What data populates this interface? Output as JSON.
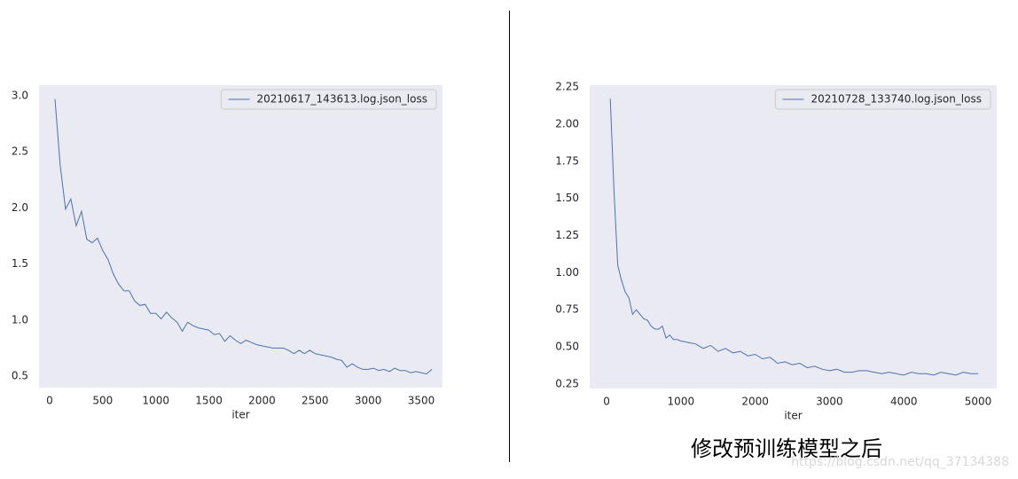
{
  "chart_data": [
    {
      "type": "line",
      "xlabel": "iter",
      "xlim": [
        -100,
        3700
      ],
      "ylim": [
        0.397,
        3.095
      ],
      "xticks": [
        0,
        500,
        1000,
        1500,
        2000,
        2500,
        3000,
        3500
      ],
      "yticks": [
        0.5,
        {
          "value": 1.0,
          "label": "1.0"
        },
        1.5,
        {
          "value": 2.0,
          "label": "2.0"
        },
        2.5,
        {
          "value": 3.0,
          "label": "3.0"
        }
      ],
      "grid": false,
      "legend": "upper right",
      "background": "#eaeaf2",
      "x": [
        50,
        100,
        150,
        200,
        250,
        300,
        350,
        400,
        450,
        500,
        550,
        600,
        650,
        700,
        750,
        800,
        850,
        900,
        950,
        1000,
        1050,
        1100,
        1150,
        1200,
        1250,
        1300,
        1350,
        1400,
        1450,
        1500,
        1550,
        1600,
        1650,
        1700,
        1750,
        1800,
        1850,
        1900,
        1950,
        2000,
        2050,
        2100,
        2150,
        2200,
        2250,
        2300,
        2350,
        2400,
        2450,
        2500,
        2550,
        2600,
        2650,
        2700,
        2750,
        2800,
        2850,
        2900,
        2950,
        3000,
        3050,
        3100,
        3150,
        3200,
        3250,
        3300,
        3350,
        3400,
        3450,
        3500,
        3550,
        3600
      ],
      "series": [
        {
          "name": "20210617_143613.log.json_loss",
          "color": "#4c72b0",
          "values": [
            2.97,
            2.38,
            1.99,
            2.08,
            1.84,
            1.97,
            1.72,
            1.69,
            1.73,
            1.62,
            1.54,
            1.41,
            1.32,
            1.26,
            1.26,
            1.17,
            1.13,
            1.14,
            1.06,
            1.06,
            1.01,
            1.07,
            1.02,
            0.98,
            0.9,
            0.98,
            0.95,
            0.93,
            0.92,
            0.91,
            0.87,
            0.88,
            0.81,
            0.86,
            0.82,
            0.79,
            0.82,
            0.8,
            0.78,
            0.77,
            0.76,
            0.75,
            0.75,
            0.75,
            0.73,
            0.7,
            0.73,
            0.7,
            0.73,
            0.7,
            0.69,
            0.68,
            0.67,
            0.65,
            0.64,
            0.58,
            0.61,
            0.58,
            0.56,
            0.56,
            0.57,
            0.55,
            0.56,
            0.54,
            0.57,
            0.55,
            0.55,
            0.53,
            0.54,
            0.53,
            0.52,
            0.56
          ]
        }
      ]
    },
    {
      "type": "line",
      "xlabel": "iter",
      "xlim": [
        -227,
        5250
      ],
      "ylim": [
        0.22,
        2.262
      ],
      "xticks": [
        0,
        1000,
        2000,
        3000,
        4000,
        5000
      ],
      "yticks": [
        {
          "value": 0.25,
          "label": "0.25"
        },
        {
          "value": 0.5,
          "label": "0.50"
        },
        0.75,
        {
          "value": 1.0,
          "label": "1.00"
        },
        1.25,
        {
          "value": 1.5,
          "label": "1.50"
        },
        1.75,
        {
          "value": 2.0,
          "label": "2.00"
        },
        2.25
      ],
      "grid": false,
      "legend": "upper right",
      "background": "#eaeaf2",
      "x": [
        50,
        100,
        150,
        200,
        250,
        300,
        350,
        400,
        450,
        500,
        550,
        600,
        650,
        700,
        750,
        800,
        850,
        900,
        950,
        1000,
        1100,
        1200,
        1300,
        1400,
        1500,
        1600,
        1700,
        1800,
        1900,
        2000,
        2100,
        2200,
        2300,
        2400,
        2500,
        2600,
        2700,
        2800,
        2900,
        3000,
        3100,
        3200,
        3300,
        3400,
        3500,
        3600,
        3700,
        3800,
        3900,
        4000,
        4100,
        4200,
        4300,
        4400,
        4500,
        4600,
        4700,
        4800,
        4900,
        5000
      ],
      "series": [
        {
          "name": "20210728_133740.log.json_loss",
          "color": "#4c72b0",
          "values": [
            2.17,
            1.55,
            1.05,
            0.95,
            0.87,
            0.83,
            0.72,
            0.75,
            0.72,
            0.69,
            0.68,
            0.64,
            0.62,
            0.62,
            0.64,
            0.56,
            0.58,
            0.55,
            0.55,
            0.54,
            0.53,
            0.52,
            0.49,
            0.51,
            0.47,
            0.49,
            0.46,
            0.47,
            0.44,
            0.45,
            0.42,
            0.43,
            0.39,
            0.4,
            0.38,
            0.39,
            0.36,
            0.37,
            0.35,
            0.34,
            0.35,
            0.33,
            0.33,
            0.34,
            0.34,
            0.33,
            0.32,
            0.33,
            0.32,
            0.31,
            0.33,
            0.32,
            0.32,
            0.31,
            0.33,
            0.32,
            0.31,
            0.33,
            0.32,
            0.32
          ]
        }
      ]
    }
  ],
  "caption": "修改预训练模型之后",
  "watermark": "https://blog.csdn.net/qq_37134388"
}
